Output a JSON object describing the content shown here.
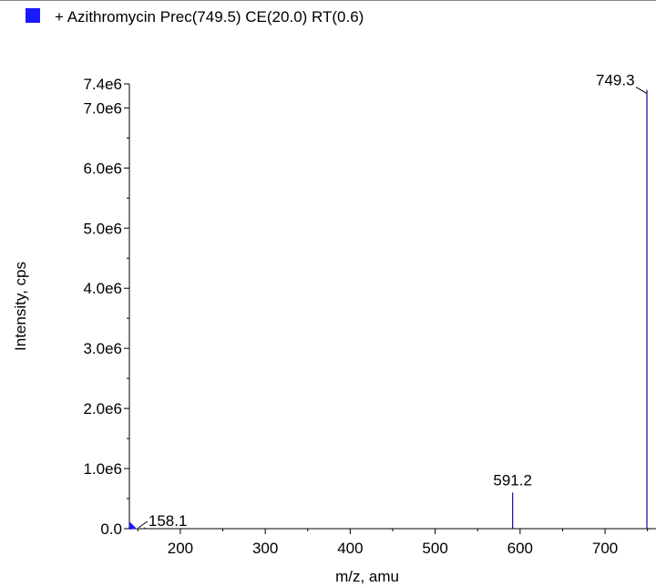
{
  "legend": {
    "text": "+ Azithromycin Prec(749.5) CE(20.0) RT(0.6)",
    "color": "#1a1aff"
  },
  "edge_fragment": "e",
  "chart_data": {
    "type": "bar",
    "title": "",
    "xlabel": "m/z, amu",
    "ylabel": "Intensity, cps",
    "xlim": [
      140,
      760
    ],
    "ylim": [
      0,
      7400000.0
    ],
    "xticks": [
      200,
      300,
      400,
      500,
      600,
      700
    ],
    "xtick_labels": [
      "200",
      "300",
      "400",
      "500",
      "600",
      "700"
    ],
    "yticks": [
      0,
      1000000.0,
      2000000.0,
      3000000.0,
      4000000.0,
      5000000.0,
      6000000.0,
      7000000.0,
      7400000.0
    ],
    "ytick_labels": [
      "0.0",
      "1.0e6",
      "2.0e6",
      "3.0e6",
      "4.0e6",
      "5.0e6",
      "6.0e6",
      "7.0e6",
      "7.4e6"
    ],
    "peaks": [
      {
        "mz": 158.1,
        "intensity": 20000,
        "label": "158.1"
      },
      {
        "mz": 591.2,
        "intensity": 600000,
        "label": "591.2"
      },
      {
        "mz": 749.3,
        "intensity": 7300000,
        "label": "749.3"
      }
    ],
    "series_color": "#1a1aaa",
    "marker_color": "#1a1aff",
    "grid": false
  }
}
